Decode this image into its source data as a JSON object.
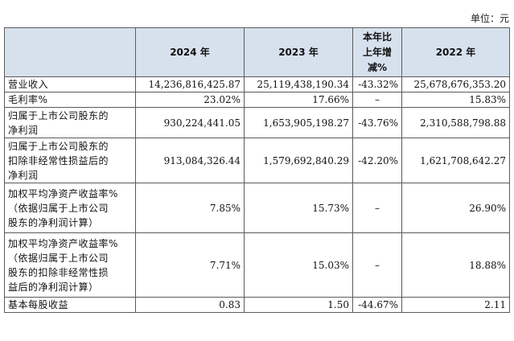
{
  "unit_note": "单位：元",
  "table": {
    "headers": [
      "",
      "2024 年",
      "2023 年",
      "本年比\n上年增\n减%",
      "2022 年"
    ],
    "rows": [
      {
        "label": "营业收入",
        "v2024": "14,236,816,425.87",
        "v2023": "25,119,438,190.34",
        "yoy": "-43.32%",
        "v2022": "25,678,676,353.20"
      },
      {
        "label": "毛利率%",
        "v2024": "23.02%",
        "v2023": "17.66%",
        "yoy": "–",
        "v2022": "15.83%"
      },
      {
        "label": "归属于上市公司股东的\n净利润",
        "v2024": "930,224,441.05",
        "v2023": "1,653,905,198.27",
        "yoy": "-43.76%",
        "v2022": "2,310,588,798.88"
      },
      {
        "label": "归属于上市公司股东的\n扣除非经常性损益后的\n净利润",
        "v2024": "913,084,326.44",
        "v2023": "1,579,692,840.29",
        "yoy": "-42.20%",
        "v2022": "1,621,708,642.27"
      },
      {
        "label": "加权平均净资产收益率%\n（依据归属于上市公司\n股东的净利润计算）",
        "v2024": "7.85%",
        "v2023": "15.73%",
        "yoy": "–",
        "v2022": "26.90%"
      },
      {
        "label": "加权平均净资产收益率%\n（依据归属于上市公司\n股东的扣除非经常性损\n益后的净利润计算）",
        "v2024": "7.71%",
        "v2023": "15.03%",
        "yoy": "–",
        "v2022": "18.88%"
      },
      {
        "label": "基本每股收益",
        "v2024": "0.83",
        "v2023": "1.50",
        "yoy": "-44.67%",
        "v2022": "2.11"
      }
    ]
  }
}
